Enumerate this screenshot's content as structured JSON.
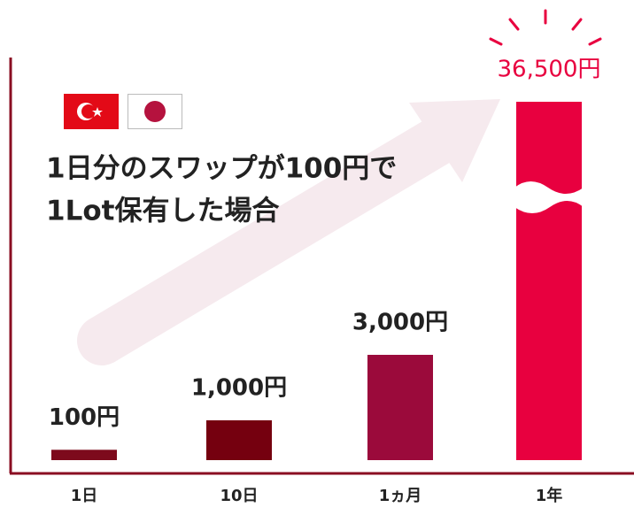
{
  "chart_data": {
    "type": "bar",
    "title_lines": [
      "1日分のスワップが100円で",
      "1Lot保有した場合"
    ],
    "categories": [
      "1日",
      "10日",
      "1ヵ月",
      "1年"
    ],
    "values": [
      100,
      1000,
      3000,
      36500
    ],
    "value_labels": [
      "100円",
      "1,000円",
      "3,000円",
      "36,500円"
    ],
    "colors": [
      "#7d0a1c",
      "#75000f",
      "#9b0a3b",
      "#e8003f"
    ]
  }
}
